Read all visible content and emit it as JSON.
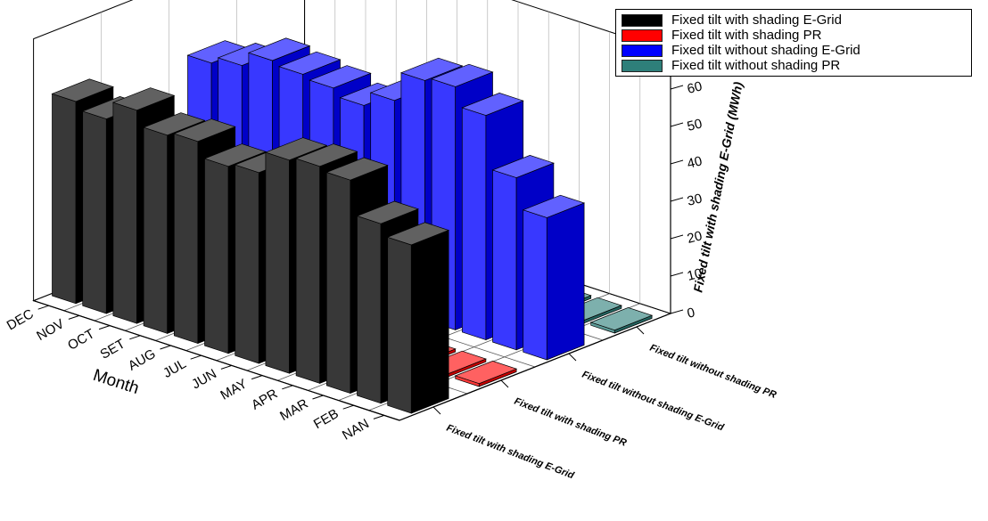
{
  "chart_data": {
    "type": "bar",
    "chart_style": "3d-grouped-bar",
    "categories": [
      "NAN",
      "FEB",
      "MAR",
      "APR",
      "MAY",
      "JUN",
      "JUL",
      "AUG",
      "SET",
      "OCT",
      "NOV",
      "DEC"
    ],
    "series": [
      {
        "name": "Fixed tilt with shading E-Grid",
        "color": "#000000",
        "values": [
          45,
          48,
          57,
          58,
          57,
          51,
          50,
          54,
          53,
          57,
          52,
          54
        ]
      },
      {
        "name": "Fixed tilt with shading PR",
        "color": "#ff0000",
        "values": [
          0.8,
          0.8,
          0.8,
          0.8,
          0.8,
          0.8,
          0.8,
          0.8,
          0.8,
          0.8,
          0.8,
          0.8
        ]
      },
      {
        "name": "Fixed tilt without shading E-Grid",
        "color": "#0000ff",
        "values": [
          38,
          46,
          60,
          65,
          64,
          56,
          52,
          54,
          55,
          56,
          52,
          50
        ]
      },
      {
        "name": "Fixed tilt without shading PR",
        "color": "#2e7f7a",
        "values": [
          0.8,
          0.8,
          0.8,
          0.8,
          0.8,
          0.8,
          0.8,
          0.8,
          0.8,
          0.8,
          0.8,
          0.8
        ]
      }
    ],
    "series_axis_labels": [
      "Fixed tilt with shading E-Grid",
      "Fixed tilt with shading PR",
      "Fixed tilt without shading E-Grid",
      "Fixed tilt without shading PR"
    ],
    "xlabel": "Month",
    "ylabel": "",
    "zlabel": "Fixed tilt with shading E-Grid (MWh)",
    "zlim": [
      0,
      70
    ],
    "zticks": [
      0,
      10,
      20,
      30,
      40,
      50,
      60
    ],
    "grid": true,
    "legend_position": "top-right"
  }
}
